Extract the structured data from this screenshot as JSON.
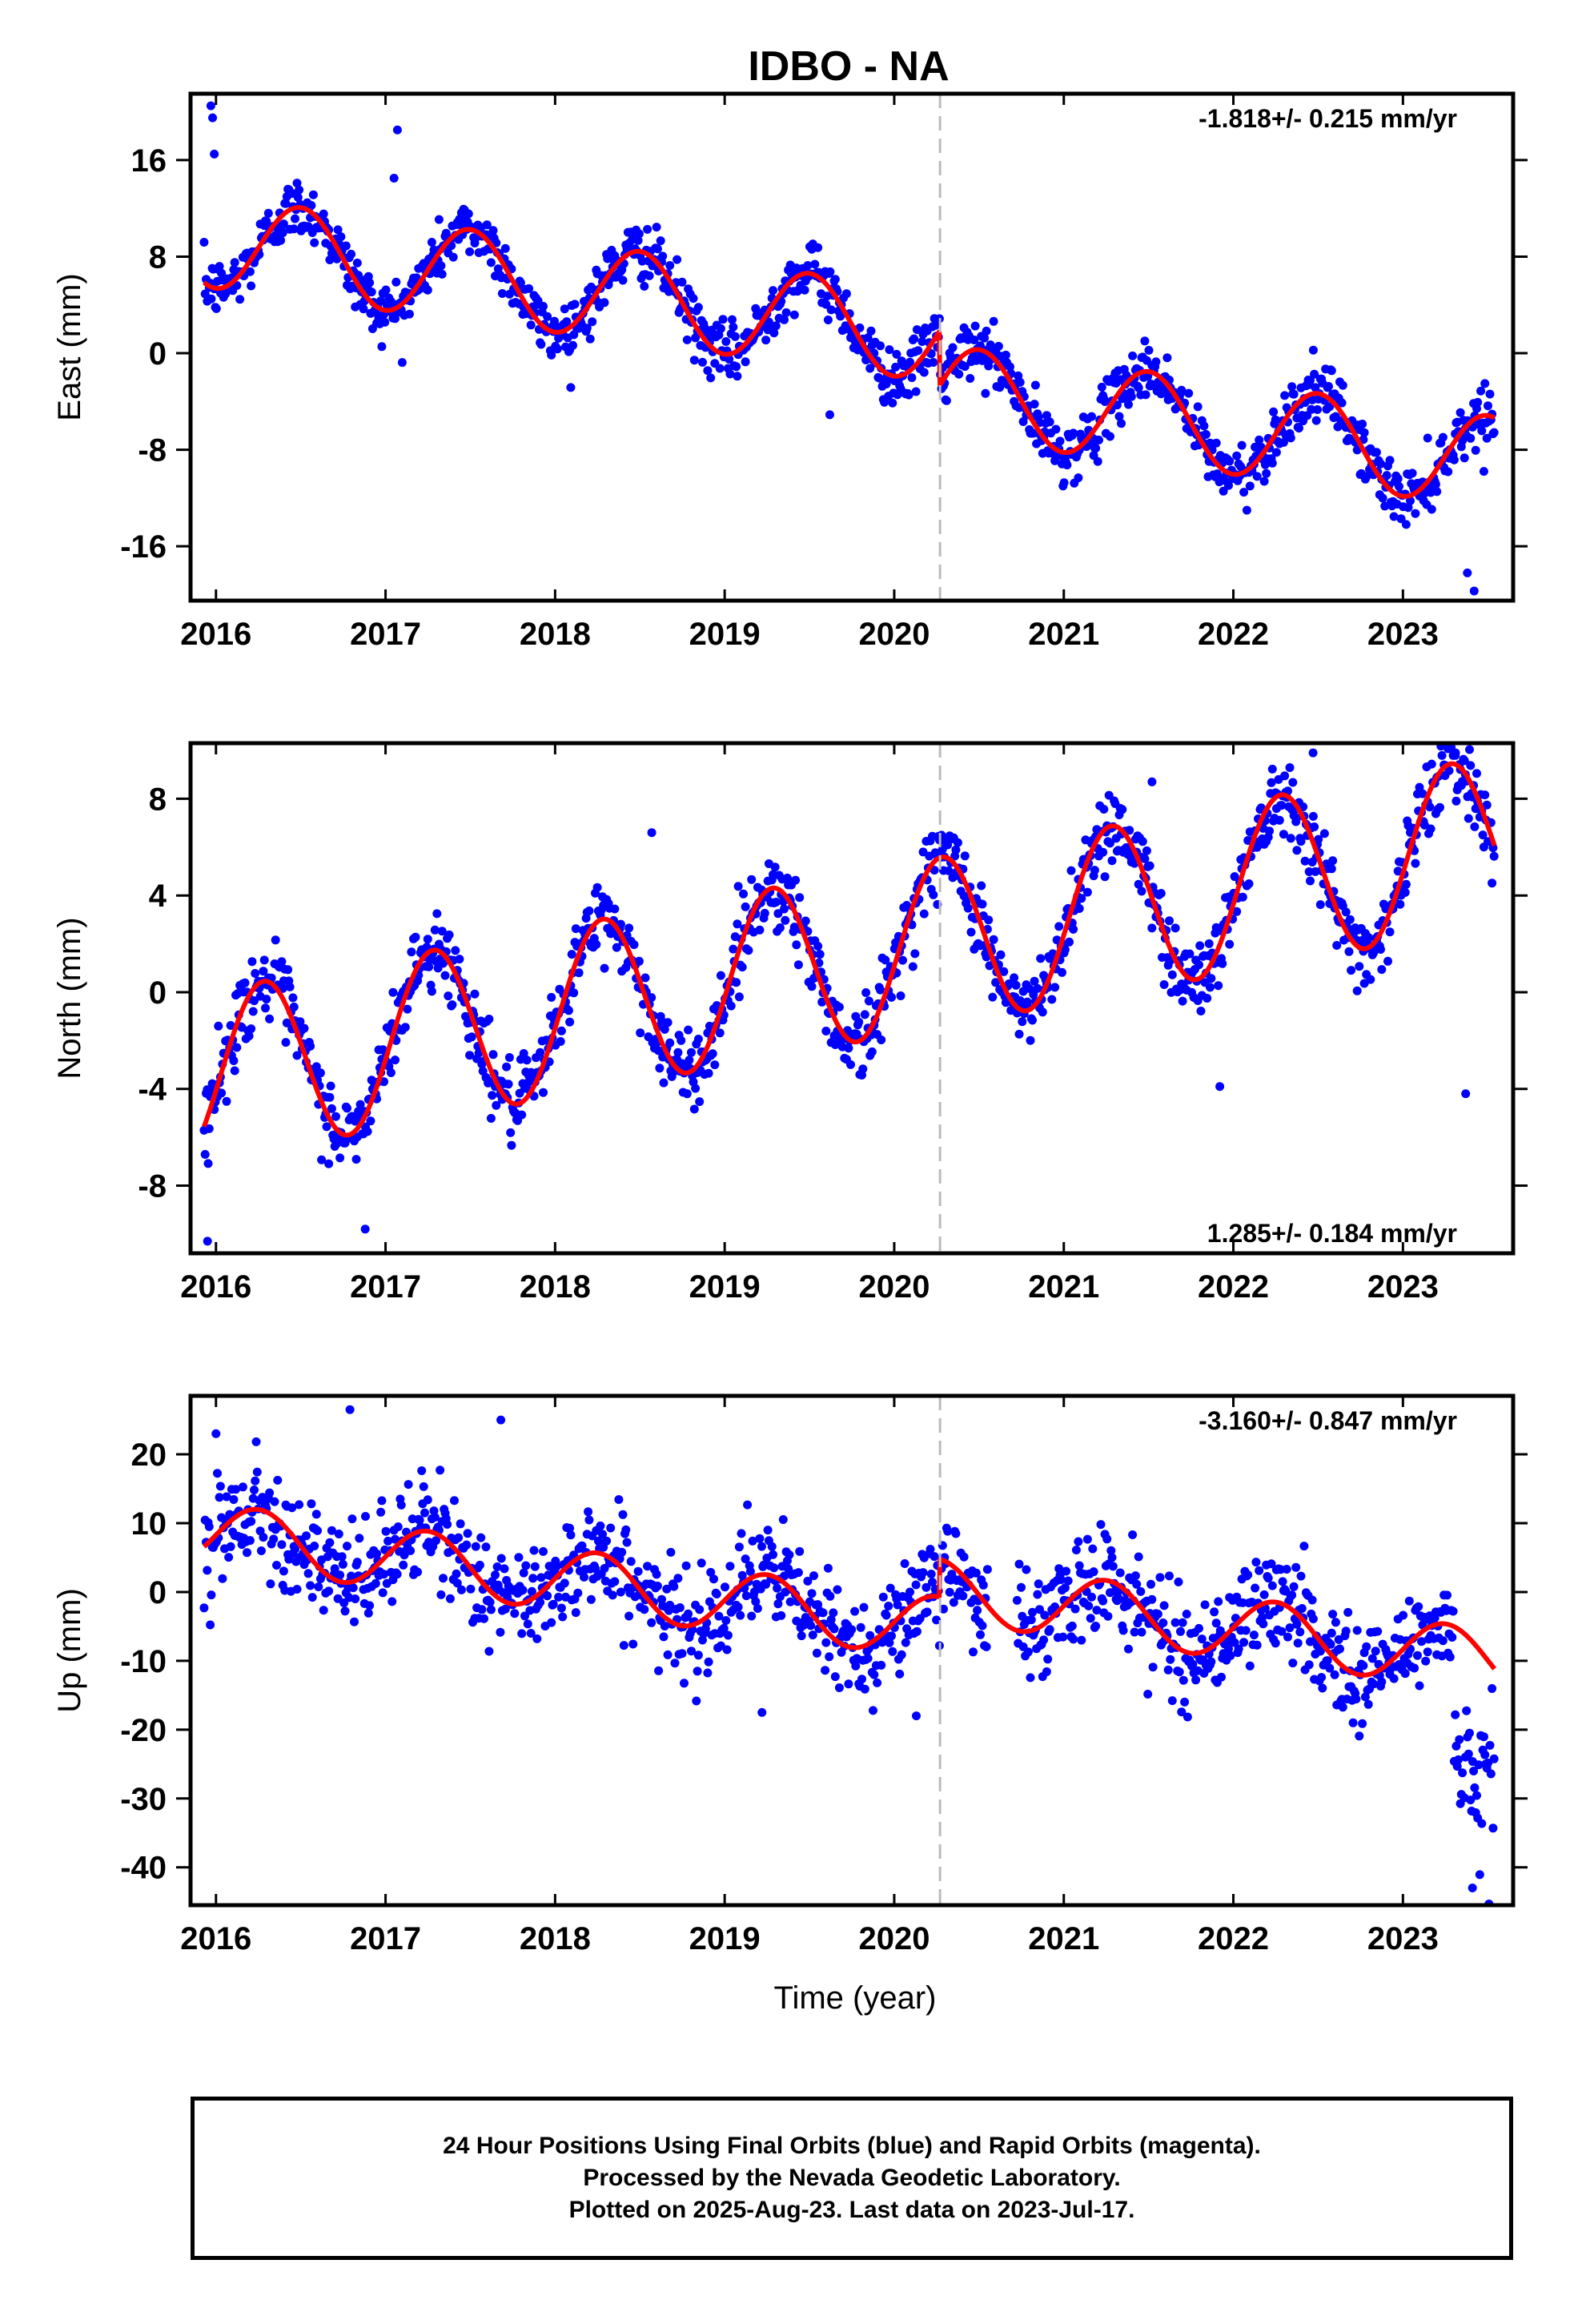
{
  "title": "IDBO - NA",
  "footer": {
    "line1": "24 Hour Positions Using Final Orbits (blue) and Rapid Orbits (magenta).",
    "line2": "Processed by the Nevada Geodetic Laboratory.",
    "line3": "Plotted on 2025-Aug-23. Last data on 2023-Jul-17."
  },
  "colors": {
    "data": "#0000ff",
    "model": "#ff0000",
    "break_line": "#bbbbbb",
    "frame": "#000000"
  },
  "chart_data": [
    {
      "type": "scatter",
      "component": "east",
      "ylabel": "East (mm)",
      "xlabel": "",
      "rate_label": "-1.818+/- 0.215 mm/yr",
      "rate_position": "top-right",
      "xlim": [
        2015.85,
        2023.65
      ],
      "ylim": [
        -20.5,
        21.5
      ],
      "xticks": [
        "2016",
        "2017",
        "2018",
        "2019",
        "2020",
        "2021",
        "2022",
        "2023"
      ],
      "yticks": [
        "16",
        "8",
        "0",
        "-8",
        "-16"
      ],
      "ytick_values": [
        16,
        8,
        0,
        -8,
        -16
      ],
      "break_epoch": 2020.27,
      "grid": false,
      "model": {
        "rate": -1.818,
        "amplitude": 3.8,
        "phase_year": 0.5,
        "offset": 9.3,
        "step": -4.5,
        "x_start": 2015.93,
        "x_end": 2023.54
      },
      "data_observed": {
        "x_start": 2015.93,
        "x_end": 2023.54,
        "scatter_sd": 1.2
      },
      "series": [
        {
          "name": "",
          "role": "daily positions (final orbits)"
        },
        {
          "name": "",
          "role": "model fit"
        }
      ],
      "outliers": [
        {
          "x": 2015.97,
          "y": 20.5
        },
        {
          "x": 2015.98,
          "y": 19.5
        },
        {
          "x": 2017.07,
          "y": 18.5
        },
        {
          "x": 2017.05,
          "y": 14.5
        },
        {
          "x": 2015.99,
          "y": 16.5
        },
        {
          "x": 2023.42,
          "y": -19.7
        },
        {
          "x": 2023.38,
          "y": -18.2
        },
        {
          "x": 2019.62,
          "y": -5.1
        }
      ]
    },
    {
      "type": "scatter",
      "component": "north",
      "ylabel": "North (mm)",
      "xlabel": "",
      "rate_label": "1.285+/- 0.184 mm/yr",
      "rate_position": "bottom-right",
      "xlim": [
        2015.85,
        2023.65
      ],
      "ylim": [
        -10.8,
        10.3
      ],
      "xticks": [
        "2016",
        "2017",
        "2018",
        "2019",
        "2020",
        "2021",
        "2022",
        "2023"
      ],
      "yticks": [
        "8",
        "4",
        "0",
        "-4",
        "-8"
      ],
      "ytick_values": [
        8,
        4,
        0,
        -4,
        -8
      ],
      "break_epoch": 2020.27,
      "grid": false,
      "model": {
        "rate": 1.285,
        "amplitude": 3.5,
        "phase_year": 0.28,
        "offset": -3.5,
        "step": 0,
        "x_start": 2015.93,
        "x_end": 2023.54
      },
      "data_observed": {
        "x_start": 2015.93,
        "x_end": 2023.54,
        "scatter_sd": 0.8
      },
      "series": [
        {
          "name": "",
          "role": "daily positions (final orbits)"
        },
        {
          "name": "",
          "role": "model fit"
        }
      ],
      "outliers": [
        {
          "x": 2015.95,
          "y": -10.3
        },
        {
          "x": 2016.88,
          "y": -9.8
        },
        {
          "x": 2018.57,
          "y": 6.6
        },
        {
          "x": 2021.52,
          "y": 8.7
        },
        {
          "x": 2022.47,
          "y": 9.9
        },
        {
          "x": 2023.31,
          "y": 9.9
        },
        {
          "x": 2023.37,
          "y": -4.2
        },
        {
          "x": 2021.92,
          "y": -3.9
        }
      ]
    },
    {
      "type": "scatter",
      "component": "up",
      "ylabel": "Up (mm)",
      "xlabel": "Time (year)",
      "rate_label": "-3.160+/- 0.847 mm/yr",
      "rate_position": "top-right",
      "xlim": [
        2015.85,
        2023.65
      ],
      "ylim": [
        -45.5,
        28.5
      ],
      "xticks": [
        "2016",
        "2017",
        "2018",
        "2019",
        "2020",
        "2021",
        "2022",
        "2023"
      ],
      "yticks": [
        "20",
        "10",
        "0",
        "-10",
        "-20",
        "-30",
        "-40"
      ],
      "ytick_values": [
        20,
        10,
        0,
        -10,
        -20,
        -30,
        -40
      ],
      "break_epoch": 2020.27,
      "grid": false,
      "model": {
        "rate": -3.16,
        "amplitude": 4.5,
        "phase_year": 0.25,
        "offset": 8.5,
        "step": 5.5,
        "x_start": 2015.93,
        "x_end": 2023.54
      },
      "data_observed": {
        "x_start": 2015.93,
        "x_end": 2023.54,
        "scatter_sd": 3.8,
        "gap": [
          2020.55,
          2020.72
        ],
        "late_drop": {
          "from": 2023.3,
          "mean": -27,
          "sd": 7
        }
      },
      "series": [
        {
          "name": "",
          "role": "daily positions (final orbits)"
        },
        {
          "name": "",
          "role": "model fit"
        }
      ],
      "outliers": [
        {
          "x": 2016.79,
          "y": 26.5
        },
        {
          "x": 2017.68,
          "y": 25
        },
        {
          "x": 2023.41,
          "y": -43
        },
        {
          "x": 2019.22,
          "y": -17.5
        },
        {
          "x": 2020.13,
          "y": -18
        },
        {
          "x": 2016.0,
          "y": 23
        }
      ]
    }
  ]
}
